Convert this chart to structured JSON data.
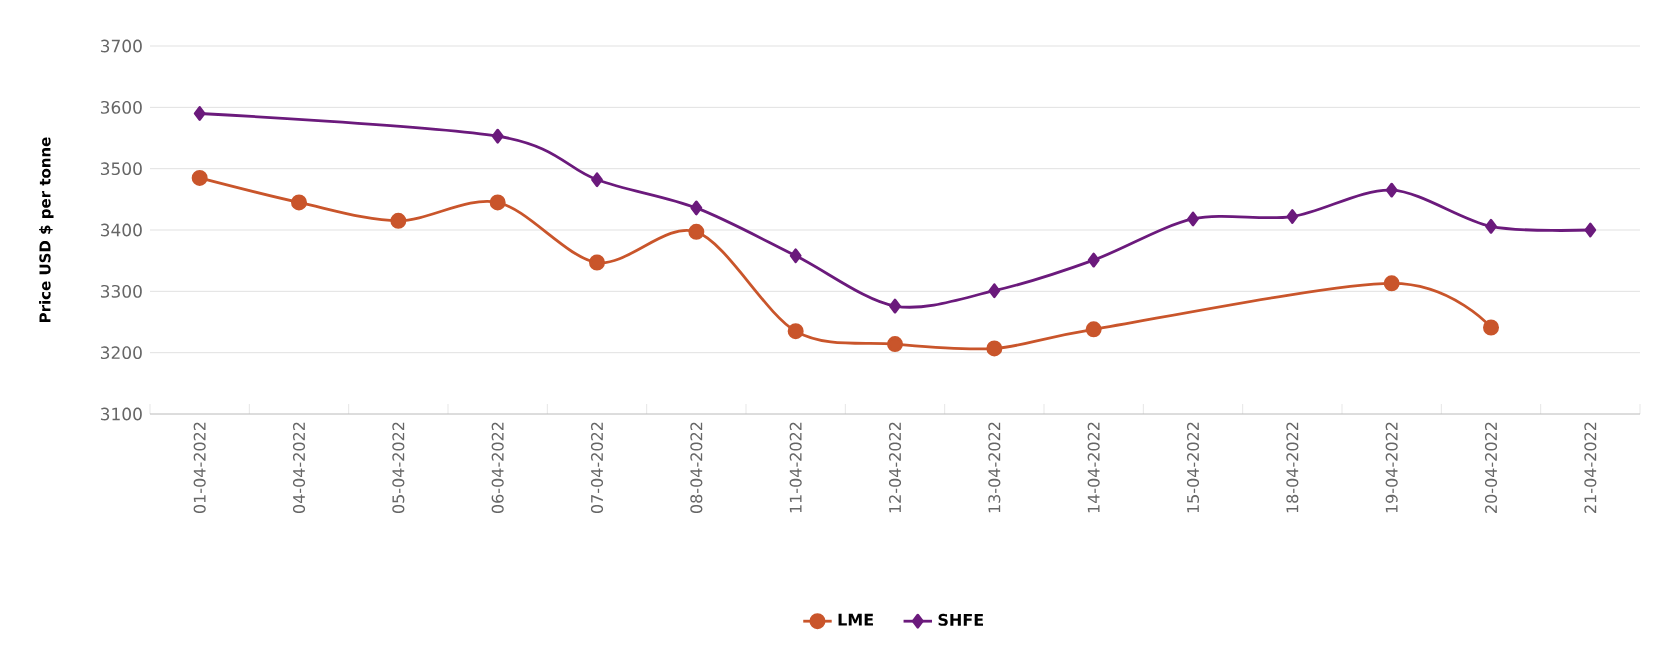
{
  "chart_data": {
    "type": "line",
    "ylabel": "Price USD $ per tonne",
    "categories": [
      "01-04-2022",
      "04-04-2022",
      "05-04-2022",
      "06-04-2022",
      "07-04-2022",
      "08-04-2022",
      "11-04-2022",
      "12-04-2022",
      "13-04-2022",
      "14-04-2022",
      "15-04-2022",
      "18-04-2022",
      "19-04-2022",
      "20-04-2022",
      "21-04-2022"
    ],
    "series": [
      {
        "name": "LME",
        "color": "#c9552b",
        "marker": "circle",
        "values": [
          3485,
          3445,
          3415,
          3445,
          3347,
          3397,
          3235,
          3214,
          3207,
          3238,
          null,
          null,
          3313,
          3241,
          null
        ]
      },
      {
        "name": "SHFE",
        "color": "#6b1a7c",
        "marker": "diamond",
        "values": [
          3590,
          null,
          null,
          3553,
          3482,
          3436,
          3358,
          3276,
          3301,
          3351,
          3418,
          3422,
          3465,
          3406,
          3400
        ]
      }
    ],
    "ylim": [
      3100,
      3700
    ],
    "yticks": [
      3100,
      3200,
      3300,
      3400,
      3500,
      3600,
      3700
    ],
    "grid": "y",
    "legend": "bottom"
  }
}
